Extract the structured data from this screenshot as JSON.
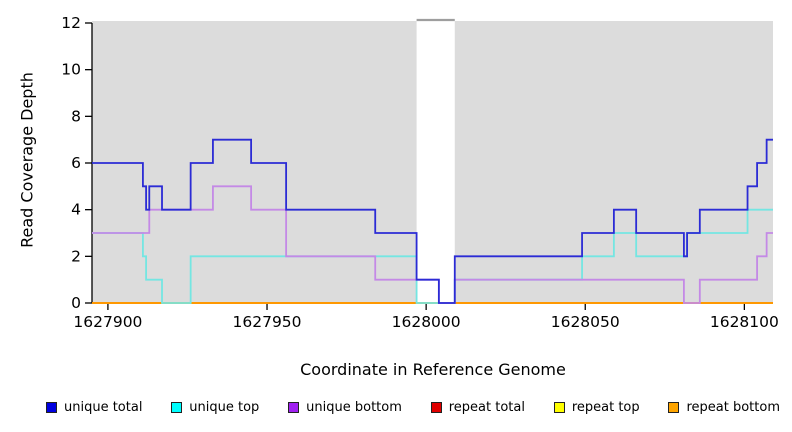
{
  "chart_data": {
    "type": "line",
    "subtype": "step-coverage-plot",
    "title": "",
    "xlabel": "Coordinate in Reference Genome",
    "ylabel": "Read Coverage Depth",
    "xlim": [
      1627895,
      1628109
    ],
    "ylim": [
      0,
      12
    ],
    "x_ticks": [
      1627900,
      1627950,
      1628000,
      1628050,
      1628100
    ],
    "y_ticks": [
      0,
      2,
      4,
      6,
      8,
      10,
      12
    ],
    "grid": false,
    "panel_background": "#dcdcdc",
    "masked_region": {
      "x_start": 1627997,
      "x_end": 1628009,
      "fill": "#ffffff",
      "cap_color": "#9e9e9e"
    },
    "series": [
      {
        "name": "repeat total",
        "color": "#d40000",
        "points": [
          [
            1627895,
            0
          ]
        ]
      },
      {
        "name": "repeat top",
        "color": "#ffff00",
        "points": [
          [
            1627895,
            0
          ]
        ]
      },
      {
        "name": "repeat bottom",
        "color": "#ff9100",
        "points": [
          [
            1627895,
            0
          ]
        ]
      },
      {
        "name": "unique top",
        "color": "#74e6e2",
        "points": [
          [
            1627895,
            3
          ],
          [
            1627911,
            2
          ],
          [
            1627912,
            1
          ],
          [
            1627917,
            0
          ],
          [
            1627926,
            2
          ],
          [
            1627997,
            0
          ],
          [
            1628009,
            1
          ],
          [
            1628049,
            2
          ],
          [
            1628059,
            3
          ],
          [
            1628066,
            2
          ],
          [
            1628082,
            3
          ],
          [
            1628101,
            4
          ]
        ]
      },
      {
        "name": "unique bottom",
        "color": "#c489e6",
        "points": [
          [
            1627895,
            3
          ],
          [
            1627913,
            4
          ],
          [
            1627933,
            5
          ],
          [
            1627945,
            4
          ],
          [
            1627956,
            2
          ],
          [
            1627984,
            1
          ],
          [
            1628004,
            0
          ],
          [
            1628009,
            1
          ],
          [
            1628081,
            0
          ],
          [
            1628086,
            1
          ],
          [
            1628104,
            2
          ],
          [
            1628107,
            3
          ]
        ]
      },
      {
        "name": "unique total",
        "color": "#2b2bd5",
        "points": [
          [
            1627895,
            6
          ],
          [
            1627911,
            5
          ],
          [
            1627912,
            4
          ],
          [
            1627913,
            5
          ],
          [
            1627917,
            4
          ],
          [
            1627926,
            6
          ],
          [
            1627933,
            7
          ],
          [
            1627945,
            6
          ],
          [
            1627956,
            4
          ],
          [
            1627984,
            3
          ],
          [
            1627997,
            1
          ],
          [
            1628004,
            0
          ],
          [
            1628009,
            2
          ],
          [
            1628049,
            3
          ],
          [
            1628059,
            4
          ],
          [
            1628066,
            3
          ],
          [
            1628081,
            2
          ],
          [
            1628082,
            3
          ],
          [
            1628086,
            4
          ],
          [
            1628101,
            5
          ],
          [
            1628104,
            6
          ],
          [
            1628107,
            7
          ]
        ]
      }
    ],
    "legend_position": "bottom"
  },
  "axes": {
    "x_title": "Coordinate in Reference Genome",
    "y_title": "Read Coverage Depth",
    "x_tick_labels": [
      "1627900",
      "1627950",
      "1628000",
      "1628050",
      "1628100"
    ],
    "y_tick_labels": [
      "0",
      "2",
      "4",
      "6",
      "8",
      "10",
      "12"
    ]
  },
  "legend": {
    "items": [
      {
        "label": "unique total",
        "color": "#0000e0"
      },
      {
        "label": "unique top",
        "color": "#00ffff"
      },
      {
        "label": "unique bottom",
        "color": "#a020f0"
      },
      {
        "label": "repeat total",
        "color": "#e00000"
      },
      {
        "label": "repeat top",
        "color": "#ffff00"
      },
      {
        "label": "repeat bottom",
        "color": "#ffa500"
      }
    ]
  }
}
